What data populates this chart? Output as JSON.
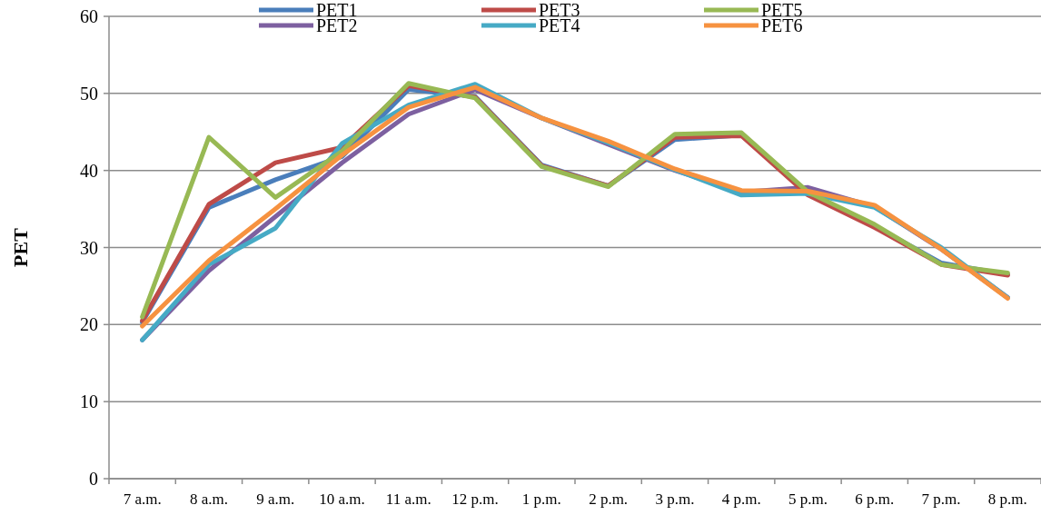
{
  "chart_data": {
    "type": "line",
    "ylabel": "PET",
    "categories": [
      "7 a.m.",
      "8 a.m.",
      "9 a.m.",
      "10 a.m.",
      "11 a.m.",
      "12 p.m.",
      "1 p.m.",
      "2 p.m.",
      "3 p.m.",
      "4 p.m.",
      "5 p.m.",
      "6 p.m.",
      "7 p.m.",
      "8 p.m."
    ],
    "ylim": [
      0,
      60
    ],
    "yticks": [
      0,
      10,
      20,
      30,
      40,
      50,
      60
    ],
    "grid": "y",
    "legend": "top",
    "marker": "none",
    "line_style": "solid",
    "series": [
      {
        "name": "PET1",
        "color": "#4a7ebb",
        "values": [
          20.3,
          35.2,
          38.8,
          41.8,
          50.5,
          49.6,
          40.7,
          38,
          44,
          44.6,
          37,
          32.8,
          28,
          26.5
        ]
      },
      {
        "name": "PET2",
        "color": "#7d60a0",
        "values": [
          18,
          27,
          34,
          41,
          47.3,
          50.5,
          46.8,
          43.4,
          40,
          37.2,
          37.8,
          35.3,
          29.8,
          23.5
        ]
      },
      {
        "name": "PET3",
        "color": "#be4b48",
        "values": [
          20.5,
          35.6,
          41,
          43,
          51,
          49.5,
          40.6,
          38,
          44.3,
          44.5,
          36.8,
          32.6,
          27.8,
          26.4
        ]
      },
      {
        "name": "PET4",
        "color": "#46aac5",
        "values": [
          18,
          27.8,
          32.5,
          43.5,
          48.5,
          51.2,
          46.8,
          43.6,
          40.1,
          36.8,
          37,
          35.2,
          30,
          23.5
        ]
      },
      {
        "name": "PET5",
        "color": "#98b954",
        "values": [
          21,
          44.3,
          36.5,
          42.5,
          51.3,
          49.4,
          40.5,
          37.9,
          44.7,
          44.9,
          37.2,
          33,
          27.8,
          26.7
        ]
      },
      {
        "name": "PET6",
        "color": "#f69240",
        "values": [
          19.8,
          28.3,
          35,
          42,
          48.2,
          50.8,
          46.8,
          43.8,
          40.2,
          37.4,
          37.3,
          35.5,
          29.8,
          23.4
        ]
      }
    ]
  }
}
